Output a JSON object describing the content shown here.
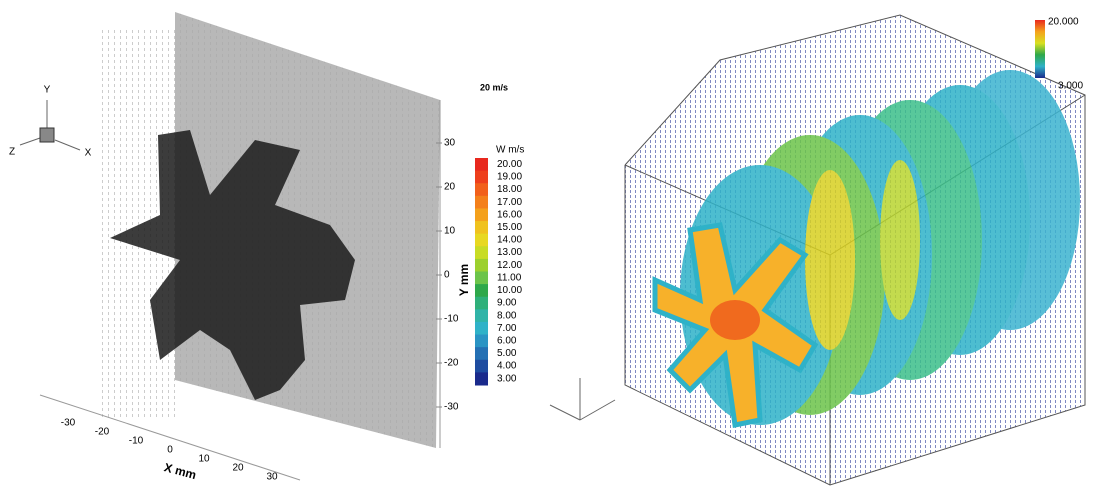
{
  "left": {
    "triad": {
      "y": "Y",
      "z": "Z",
      "x": "X"
    },
    "reference_vector": "20 m/s",
    "colorbar": {
      "title": "W m/s",
      "labels": [
        "20.00",
        "19.00",
        "18.00",
        "17.00",
        "16.00",
        "15.00",
        "14.00",
        "13.00",
        "12.00",
        "11.00",
        "10.00",
        "9.00",
        "8.00",
        "7.00",
        "6.00",
        "5.00",
        "4.00",
        "3.00"
      ]
    },
    "y_axis": {
      "title": "Y mm",
      "ticks": [
        "30",
        "20",
        "10",
        "0",
        "-10",
        "-20",
        "-30"
      ]
    },
    "x_axis": {
      "title": "X mm",
      "ticks": [
        "-30",
        "-20",
        "-10",
        "0",
        "10",
        "20",
        "30"
      ]
    }
  },
  "right": {
    "colorbar": {
      "max": "20.000",
      "min": "3.000"
    }
  }
}
